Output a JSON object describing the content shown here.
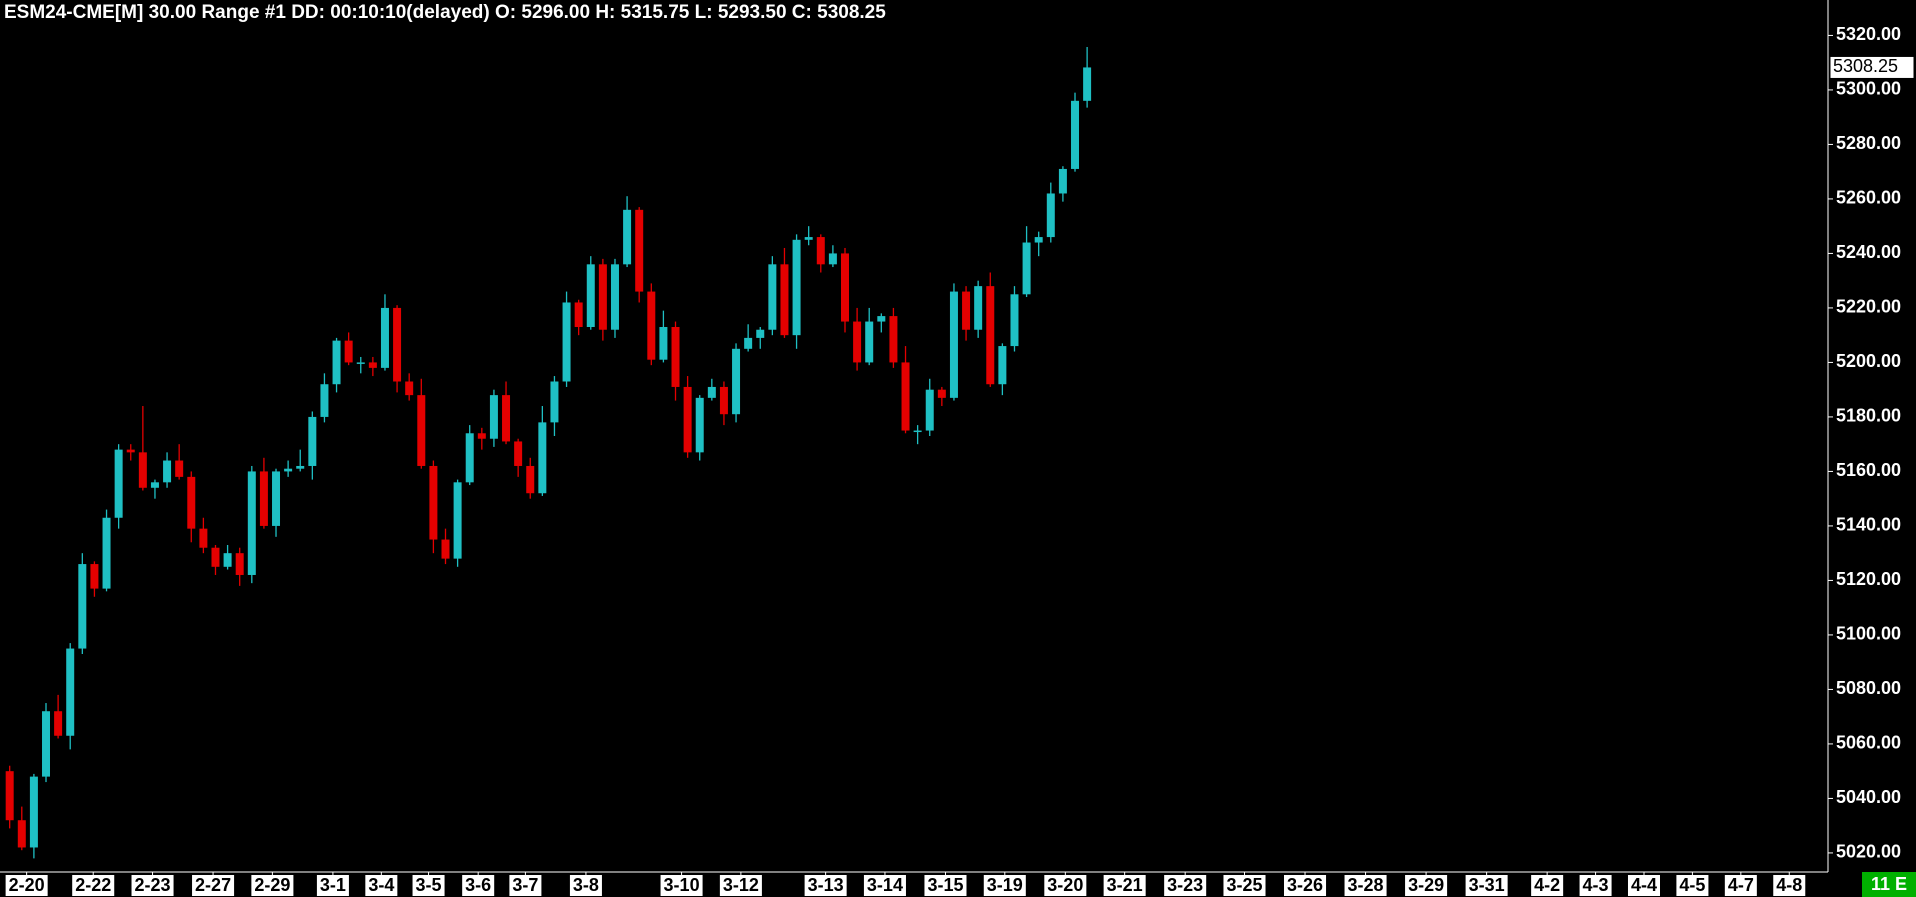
{
  "chart_data": {
    "type": "candlestick",
    "title": "ESM24-CME[M]  30.00 Range #1 DD: 00:10:10(delayed) O: 5296.00 H: 5315.75 L: 5293.50 C: 5308.25",
    "status": "11 E",
    "up_color": "#1fc0c4",
    "down_color": "#e40000",
    "xlim": [
      -0.8,
      150.2
    ],
    "ylim": [
      5013,
      5333
    ],
    "yticks": [
      {
        "value": 5020,
        "label": "5020.00"
      },
      {
        "value": 5040,
        "label": "5040.00"
      },
      {
        "value": 5060,
        "label": "5060.00"
      },
      {
        "value": 5080,
        "label": "5080.00"
      },
      {
        "value": 5100,
        "label": "5100.00"
      },
      {
        "value": 5120,
        "label": "5120.00"
      },
      {
        "value": 5140,
        "label": "5140.00"
      },
      {
        "value": 5160,
        "label": "5160.00"
      },
      {
        "value": 5180,
        "label": "5180.00"
      },
      {
        "value": 5200,
        "label": "5200.00"
      },
      {
        "value": 5220,
        "label": "5220.00"
      },
      {
        "value": 5240,
        "label": "5240.00"
      },
      {
        "value": 5260,
        "label": "5260.00"
      },
      {
        "value": 5280,
        "label": "5280.00"
      },
      {
        "value": 5300,
        "label": "5300.00"
      },
      {
        "value": 5320,
        "label": "5320.00"
      }
    ],
    "xticks": [
      {
        "value": 1.4,
        "label": "2-20"
      },
      {
        "value": 6.9,
        "label": "2-22"
      },
      {
        "value": 11.8,
        "label": "2-23"
      },
      {
        "value": 16.8,
        "label": "2-27"
      },
      {
        "value": 21.7,
        "label": "2-29"
      },
      {
        "value": 26.7,
        "label": "3-1"
      },
      {
        "value": 30.7,
        "label": "3-4"
      },
      {
        "value": 34.6,
        "label": "3-5"
      },
      {
        "value": 38.7,
        "label": "3-6"
      },
      {
        "value": 42.6,
        "label": "3-7"
      },
      {
        "value": 47.6,
        "label": "3-8"
      },
      {
        "value": 55.5,
        "label": "3-10"
      },
      {
        "value": 60.4,
        "label": "3-12"
      },
      {
        "value": 67.4,
        "label": "3-13"
      },
      {
        "value": 72.3,
        "label": "3-14"
      },
      {
        "value": 77.3,
        "label": "3-15"
      },
      {
        "value": 82.2,
        "label": "3-19"
      },
      {
        "value": 87.2,
        "label": "3-20"
      },
      {
        "value": 92.1,
        "label": "3-21"
      },
      {
        "value": 97.1,
        "label": "3-23"
      },
      {
        "value": 102,
        "label": "3-25"
      },
      {
        "value": 107,
        "label": "3-26"
      },
      {
        "value": 112,
        "label": "3-28"
      },
      {
        "value": 117,
        "label": "3-29"
      },
      {
        "value": 122,
        "label": "3-31"
      },
      {
        "value": 127,
        "label": "4-2"
      },
      {
        "value": 131,
        "label": "4-3"
      },
      {
        "value": 135,
        "label": "4-4"
      },
      {
        "value": 139,
        "label": "4-5"
      },
      {
        "value": 143,
        "label": "4-7"
      },
      {
        "value": 147,
        "label": "4-8"
      }
    ],
    "open": [
      5050,
      5032,
      5022,
      5048,
      5072,
      5063,
      5095,
      5126,
      5117,
      5143,
      5168,
      5167,
      5154,
      5156,
      5164,
      5158,
      5139,
      5132,
      5125,
      5130,
      5122,
      5160,
      5140,
      5160,
      5161,
      5162,
      5180,
      5192,
      5208,
      5200,
      5200,
      5198,
      5220,
      5193,
      5188,
      5162,
      5135,
      5128,
      5156,
      5174,
      5172,
      5188,
      5171,
      5162,
      5152,
      5178,
      5193,
      5222,
      5213,
      5236,
      5212,
      5236,
      5256,
      5226,
      5201,
      5213,
      5191,
      5167,
      5187,
      5191,
      5181,
      5205,
      5209,
      5212,
      5236,
      5210,
      5245,
      5246,
      5236,
      5240,
      5215,
      5200,
      5215,
      5217,
      5200,
      5175,
      5175,
      5190,
      5187,
      5226,
      5212,
      5228,
      5192,
      5206,
      5225,
      5244,
      5246,
      5262,
      5271,
      5296
    ],
    "high": [
      5052,
      5037,
      5049,
      5075,
      5078,
      5097,
      5130,
      5127,
      5146,
      5170,
      5170,
      5184,
      5157,
      5167,
      5170,
      5160,
      5143,
      5133,
      5133,
      5132,
      5162,
      5165,
      5161,
      5164,
      5168,
      5182,
      5196,
      5209,
      5211,
      5202,
      5202,
      5225,
      5221,
      5196,
      5194,
      5164,
      5139,
      5157,
      5177,
      5176,
      5190,
      5193,
      5172,
      5165,
      5184,
      5195,
      5226,
      5223,
      5239,
      5238,
      5238,
      5261,
      5257,
      5229,
      5219,
      5215,
      5195,
      5188,
      5194,
      5193,
      5207,
      5214,
      5213,
      5239,
      5242,
      5247,
      5250,
      5247,
      5243,
      5242,
      5220,
      5220,
      5218,
      5220,
      5206,
      5177,
      5194,
      5191,
      5229,
      5228,
      5230,
      5233,
      5207,
      5228,
      5250,
      5248,
      5266,
      5272,
      5299,
      5315.75
    ],
    "low": [
      5029,
      5021,
      5018,
      5046,
      5062,
      5058,
      5093,
      5114,
      5116,
      5139,
      5164,
      5153,
      5150,
      5154,
      5157,
      5134,
      5130,
      5122,
      5124,
      5118,
      5119,
      5139,
      5136,
      5158,
      5160,
      5157,
      5178,
      5189,
      5199,
      5196,
      5195,
      5197,
      5189,
      5186,
      5161,
      5130,
      5126,
      5125,
      5155,
      5168,
      5169,
      5170,
      5158,
      5150,
      5151,
      5173,
      5191,
      5210,
      5212,
      5208,
      5209,
      5235,
      5222,
      5199,
      5200,
      5186,
      5165,
      5164,
      5186,
      5177,
      5178,
      5204,
      5205,
      5210,
      5209,
      5205,
      5243,
      5233,
      5235,
      5211,
      5197,
      5199,
      5211,
      5198,
      5174,
      5170,
      5173,
      5184,
      5186,
      5208,
      5209,
      5191,
      5188,
      5204,
      5224,
      5239,
      5244,
      5259,
      5270,
      5293.5
    ],
    "close": [
      5032,
      5022,
      5048,
      5072,
      5063,
      5095,
      5126,
      5117,
      5143,
      5168,
      5167,
      5154,
      5156,
      5164,
      5158,
      5139,
      5132,
      5125,
      5130,
      5122,
      5160,
      5140,
      5160,
      5161,
      5162,
      5180,
      5192,
      5208,
      5200,
      5200,
      5198,
      5220,
      5193,
      5188,
      5162,
      5135,
      5128,
      5156,
      5174,
      5172,
      5188,
      5171,
      5162,
      5152,
      5178,
      5193,
      5222,
      5213,
      5236,
      5212,
      5236,
      5256,
      5226,
      5201,
      5213,
      5191,
      5167,
      5187,
      5191,
      5181,
      5205,
      5209,
      5212,
      5236,
      5210,
      5245,
      5246,
      5236,
      5240,
      5215,
      5200,
      5215,
      5217,
      5200,
      5175,
      5175,
      5190,
      5187,
      5226,
      5212,
      5228,
      5192,
      5206,
      5225,
      5244,
      5246,
      5262,
      5271,
      5296,
      5308.25
    ]
  }
}
